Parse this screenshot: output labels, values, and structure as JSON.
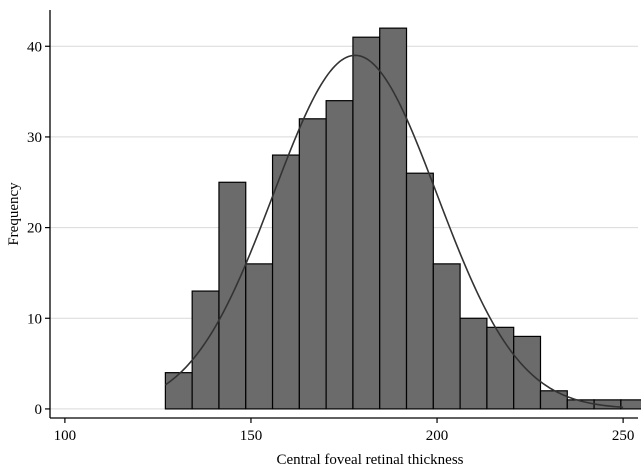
{
  "chart_data": {
    "type": "bar",
    "subtype": "histogram",
    "title": "",
    "xlabel": "Central foveal retinal thickness",
    "ylabel": "Frequency",
    "xlim": [
      96,
      254
    ],
    "ylim": [
      -1,
      44
    ],
    "xticks": [
      100,
      150,
      200,
      250
    ],
    "yticks": [
      0,
      10,
      20,
      30,
      40
    ],
    "bin_width": 7.2,
    "bins": [
      {
        "start": 127.0,
        "end": 134.2,
        "count": 4
      },
      {
        "start": 134.2,
        "end": 141.4,
        "count": 13
      },
      {
        "start": 141.4,
        "end": 148.6,
        "count": 25
      },
      {
        "start": 148.6,
        "end": 155.8,
        "count": 16
      },
      {
        "start": 155.8,
        "end": 163.0,
        "count": 28
      },
      {
        "start": 163.0,
        "end": 170.2,
        "count": 32
      },
      {
        "start": 170.2,
        "end": 177.4,
        "count": 34
      },
      {
        "start": 177.4,
        "end": 184.6,
        "count": 41
      },
      {
        "start": 184.6,
        "end": 191.8,
        "count": 42
      },
      {
        "start": 191.8,
        "end": 199.0,
        "count": 26
      },
      {
        "start": 199.0,
        "end": 206.2,
        "count": 16
      },
      {
        "start": 206.2,
        "end": 213.4,
        "count": 10
      },
      {
        "start": 213.4,
        "end": 220.6,
        "count": 9
      },
      {
        "start": 220.6,
        "end": 227.8,
        "count": 8
      },
      {
        "start": 227.8,
        "end": 235.0,
        "count": 2
      },
      {
        "start": 235.0,
        "end": 242.2,
        "count": 1
      },
      {
        "start": 242.2,
        "end": 249.4,
        "count": 1
      },
      {
        "start": 249.4,
        "end": 256.6,
        "count": 1
      }
    ],
    "normal_curve": {
      "mean": 178,
      "sd": 22,
      "peak": 39,
      "x_range": [
        127,
        250
      ]
    },
    "grid": true,
    "legend": "none",
    "colors": {
      "bar_fill": "#6b6b6b",
      "bar_stroke": "#000000",
      "curve": "#333333",
      "grid": "#d9d9d9",
      "axis": "#000000"
    }
  }
}
